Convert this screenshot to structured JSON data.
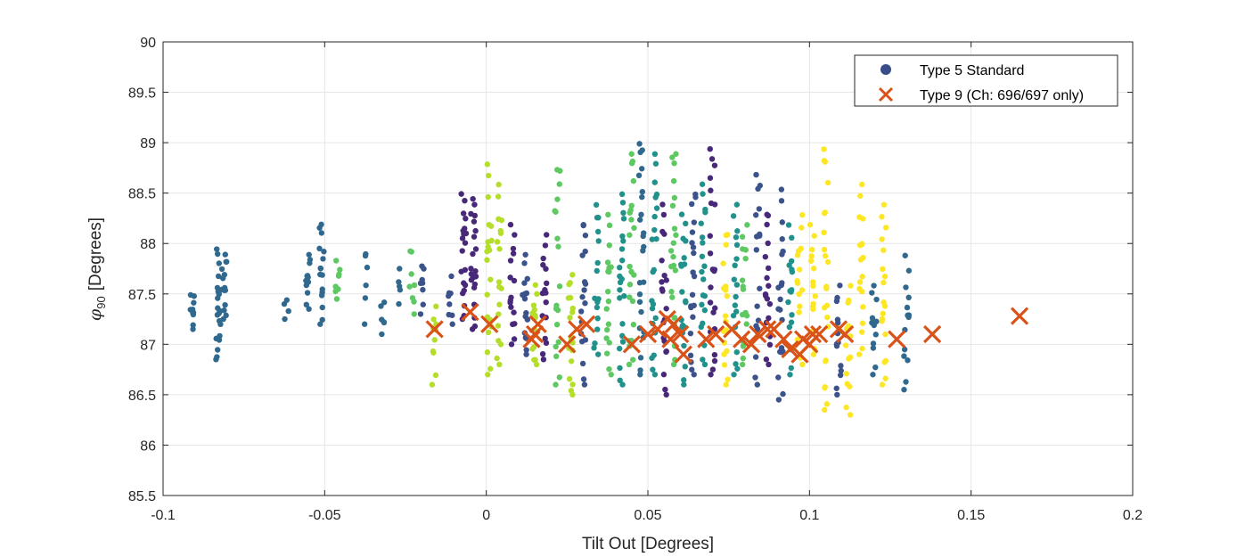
{
  "chart_data": {
    "type": "scatter",
    "title": "",
    "xlabel": "Tilt Out [Degrees]",
    "ylabel": "[Degrees]",
    "ylabel_symbol": "φ",
    "ylabel_subscript": "90",
    "xlim": [
      -0.1,
      0.2
    ],
    "ylim": [
      85.5,
      90
    ],
    "xticks": [
      -0.1,
      -0.05,
      0,
      0.05,
      0.1,
      0.15,
      0.2
    ],
    "xtick_labels": [
      "-0.1",
      "-0.05",
      "0",
      "0.05",
      "0.1",
      "0.15",
      "0.2"
    ],
    "yticks": [
      85.5,
      86,
      86.5,
      87,
      87.5,
      88,
      88.5,
      89,
      89.5,
      90
    ],
    "ytick_labels": [
      "85.5",
      "86",
      "86.5",
      "87",
      "87.5",
      "88",
      "88.5",
      "89",
      "89.5",
      "90"
    ],
    "grid": true,
    "legend_position": "top-right",
    "colormap": [
      "#440154",
      "#3b528b",
      "#21918c",
      "#5ec962",
      "#b5de2b",
      "#fde725"
    ],
    "series": [
      {
        "name": "Type 5 Standard",
        "marker": "circle",
        "legend_color": "#3b4c8c",
        "clusters": [
          {
            "x": -0.091,
            "ymin": 87.15,
            "ymax": 87.5,
            "color": "#31688e",
            "n": 10
          },
          {
            "x": -0.083,
            "ymin": 86.85,
            "ymax": 87.95,
            "color": "#31688e",
            "n": 22
          },
          {
            "x": -0.081,
            "ymin": 87.25,
            "ymax": 87.9,
            "color": "#31688e",
            "n": 14
          },
          {
            "x": -0.062,
            "ymin": 87.25,
            "ymax": 87.45,
            "color": "#31688e",
            "n": 4
          },
          {
            "x": -0.055,
            "ymin": 87.35,
            "ymax": 87.9,
            "color": "#31688e",
            "n": 12
          },
          {
            "x": -0.051,
            "ymin": 87.2,
            "ymax": 88.2,
            "color": "#31688e",
            "n": 16
          },
          {
            "x": -0.046,
            "ymin": 87.45,
            "ymax": 87.85,
            "color": "#5ec962",
            "n": 8
          },
          {
            "x": -0.037,
            "ymin": 87.2,
            "ymax": 87.95,
            "color": "#31688e",
            "n": 6
          },
          {
            "x": -0.032,
            "ymin": 87.1,
            "ymax": 87.45,
            "color": "#31688e",
            "n": 6
          },
          {
            "x": -0.027,
            "ymin": 87.4,
            "ymax": 87.75,
            "color": "#31688e",
            "n": 5
          },
          {
            "x": -0.023,
            "ymin": 87.3,
            "ymax": 87.95,
            "color": "#5ec962",
            "n": 8
          },
          {
            "x": -0.02,
            "ymin": 87.3,
            "ymax": 87.8,
            "color": "#3b528b",
            "n": 8
          },
          {
            "x": -0.016,
            "ymin": 86.6,
            "ymax": 87.4,
            "color": "#b5de2b",
            "n": 10
          },
          {
            "x": -0.011,
            "ymin": 87.2,
            "ymax": 87.7,
            "color": "#3b528b",
            "n": 8
          },
          {
            "x": -0.007,
            "ymin": 87.25,
            "ymax": 88.5,
            "color": "#482878",
            "n": 20
          },
          {
            "x": -0.004,
            "ymin": 87.15,
            "ymax": 88.45,
            "color": "#482878",
            "n": 22
          },
          {
            "x": 0.001,
            "ymin": 86.7,
            "ymax": 88.8,
            "color": "#b5de2b",
            "n": 20
          },
          {
            "x": 0.004,
            "ymin": 86.8,
            "ymax": 88.6,
            "color": "#b5de2b",
            "n": 18
          },
          {
            "x": 0.008,
            "ymin": 87.0,
            "ymax": 88.2,
            "color": "#482878",
            "n": 16
          },
          {
            "x": 0.012,
            "ymin": 86.9,
            "ymax": 87.9,
            "color": "#3b528b",
            "n": 16
          },
          {
            "x": 0.015,
            "ymin": 86.8,
            "ymax": 87.6,
            "color": "#b5de2b",
            "n": 14
          },
          {
            "x": 0.018,
            "ymin": 86.85,
            "ymax": 88.1,
            "color": "#482878",
            "n": 16
          },
          {
            "x": 0.022,
            "ymin": 86.6,
            "ymax": 88.75,
            "color": "#5ec962",
            "n": 18
          },
          {
            "x": 0.026,
            "ymin": 86.5,
            "ymax": 87.7,
            "color": "#b5de2b",
            "n": 18
          },
          {
            "x": 0.03,
            "ymin": 86.6,
            "ymax": 88.2,
            "color": "#3b528b",
            "n": 18
          },
          {
            "x": 0.034,
            "ymin": 86.9,
            "ymax": 88.4,
            "color": "#21918c",
            "n": 16
          },
          {
            "x": 0.038,
            "ymin": 86.7,
            "ymax": 88.3,
            "color": "#5ec962",
            "n": 18
          },
          {
            "x": 0.042,
            "ymin": 86.6,
            "ymax": 88.5,
            "color": "#21918c",
            "n": 22
          },
          {
            "x": 0.045,
            "ymin": 86.8,
            "ymax": 88.9,
            "color": "#5ec962",
            "n": 22
          },
          {
            "x": 0.048,
            "ymin": 86.7,
            "ymax": 89.0,
            "color": "#31688e",
            "n": 24
          },
          {
            "x": 0.052,
            "ymin": 86.7,
            "ymax": 88.9,
            "color": "#21918c",
            "n": 22
          },
          {
            "x": 0.055,
            "ymin": 86.5,
            "ymax": 88.4,
            "color": "#482878",
            "n": 20
          },
          {
            "x": 0.058,
            "ymin": 86.8,
            "ymax": 88.9,
            "color": "#5ec962",
            "n": 22
          },
          {
            "x": 0.061,
            "ymin": 86.6,
            "ymax": 88.3,
            "color": "#21918c",
            "n": 20
          },
          {
            "x": 0.064,
            "ymin": 86.7,
            "ymax": 88.5,
            "color": "#3b528b",
            "n": 20
          },
          {
            "x": 0.067,
            "ymin": 86.8,
            "ymax": 88.6,
            "color": "#21918c",
            "n": 20
          },
          {
            "x": 0.07,
            "ymin": 86.7,
            "ymax": 88.95,
            "color": "#482878",
            "n": 22
          },
          {
            "x": 0.074,
            "ymin": 86.6,
            "ymax": 88.1,
            "color": "#fde725",
            "n": 18
          },
          {
            "x": 0.077,
            "ymin": 86.7,
            "ymax": 88.4,
            "color": "#21918c",
            "n": 18
          },
          {
            "x": 0.08,
            "ymin": 86.8,
            "ymax": 88.2,
            "color": "#5ec962",
            "n": 16
          },
          {
            "x": 0.084,
            "ymin": 86.6,
            "ymax": 88.7,
            "color": "#3b528b",
            "n": 18
          },
          {
            "x": 0.087,
            "ymin": 86.8,
            "ymax": 88.3,
            "color": "#482878",
            "n": 18
          },
          {
            "x": 0.091,
            "ymin": 86.45,
            "ymax": 88.55,
            "color": "#3b528b",
            "n": 20
          },
          {
            "x": 0.094,
            "ymin": 86.7,
            "ymax": 88.2,
            "color": "#21918c",
            "n": 16
          },
          {
            "x": 0.097,
            "ymin": 86.8,
            "ymax": 88.3,
            "color": "#fde725",
            "n": 16
          },
          {
            "x": 0.101,
            "ymin": 86.9,
            "ymax": 88.2,
            "color": "#fde725",
            "n": 16
          },
          {
            "x": 0.105,
            "ymin": 86.35,
            "ymax": 88.95,
            "color": "#fde725",
            "n": 22
          },
          {
            "x": 0.109,
            "ymin": 86.5,
            "ymax": 87.6,
            "color": "#3b528b",
            "n": 14
          },
          {
            "x": 0.112,
            "ymin": 86.3,
            "ymax": 87.6,
            "color": "#fde725",
            "n": 14
          },
          {
            "x": 0.116,
            "ymin": 86.9,
            "ymax": 88.6,
            "color": "#fde725",
            "n": 18
          },
          {
            "x": 0.12,
            "ymin": 86.7,
            "ymax": 87.6,
            "color": "#31688e",
            "n": 12
          },
          {
            "x": 0.123,
            "ymin": 86.6,
            "ymax": 88.4,
            "color": "#fde725",
            "n": 18
          },
          {
            "x": 0.13,
            "ymin": 86.55,
            "ymax": 87.9,
            "color": "#31688e",
            "n": 14
          }
        ]
      },
      {
        "name": "Type 9 (Ch: 696/697 only)",
        "marker": "x",
        "color": "#d95319",
        "x": [
          -0.016,
          -0.005,
          0.001,
          0.014,
          0.015,
          0.016,
          0.025,
          0.028,
          0.031,
          0.045,
          0.05,
          0.053,
          0.056,
          0.057,
          0.058,
          0.06,
          0.061,
          0.068,
          0.071,
          0.076,
          0.079,
          0.082,
          0.084,
          0.087,
          0.089,
          0.092,
          0.094,
          0.097,
          0.098,
          0.1,
          0.101,
          0.103,
          0.109,
          0.111,
          0.127,
          0.138,
          0.165
        ],
        "y": [
          87.15,
          87.32,
          87.2,
          87.05,
          87.1,
          87.2,
          87.0,
          87.15,
          87.2,
          87.0,
          87.1,
          87.15,
          87.25,
          87.05,
          87.2,
          87.1,
          86.9,
          87.05,
          87.1,
          87.15,
          87.05,
          87.0,
          87.1,
          87.15,
          87.15,
          87.05,
          86.95,
          86.9,
          87.05,
          87.0,
          87.1,
          87.1,
          87.15,
          87.1,
          87.05,
          87.1,
          87.28
        ]
      }
    ]
  }
}
